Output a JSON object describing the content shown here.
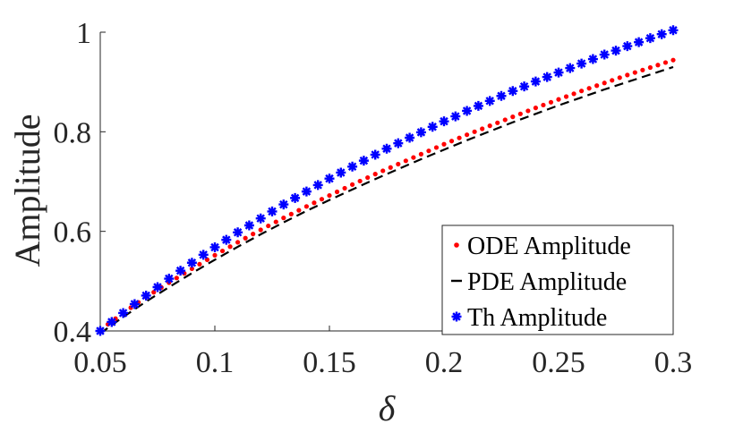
{
  "chart_data": {
    "type": "line",
    "title": "",
    "xlabel": "δ",
    "ylabel": "Amplitude",
    "xlim": [
      0.05,
      0.3
    ],
    "ylim": [
      0.4,
      1.0
    ],
    "xticks": [
      0.05,
      0.1,
      0.15,
      0.2,
      0.25,
      0.3
    ],
    "xtick_labels": [
      "0.05",
      "0.1",
      "0.15",
      "0.2",
      "0.25",
      "0.3"
    ],
    "yticks": [
      0.4,
      0.6,
      0.8,
      1.0
    ],
    "ytick_labels": [
      "0.4",
      "0.6",
      "0.8",
      "1"
    ],
    "grid": false,
    "legend_position": "bottom-right",
    "series": [
      {
        "name": "ODE Amplitude",
        "style": "dotted",
        "color": "#ff0000",
        "x": [
          0.05,
          0.06,
          0.07,
          0.08,
          0.09,
          0.1,
          0.11,
          0.12,
          0.13,
          0.14,
          0.15,
          0.16,
          0.17,
          0.18,
          0.19,
          0.2,
          0.21,
          0.22,
          0.23,
          0.24,
          0.25,
          0.26,
          0.27,
          0.28,
          0.29,
          0.3
        ],
        "y": [
          0.402,
          0.436,
          0.468,
          0.497,
          0.525,
          0.552,
          0.578,
          0.603,
          0.627,
          0.65,
          0.672,
          0.694,
          0.715,
          0.735,
          0.755,
          0.775,
          0.794,
          0.812,
          0.83,
          0.848,
          0.865,
          0.882,
          0.898,
          0.914,
          0.929,
          0.944
        ]
      },
      {
        "name": "PDE Amplitude",
        "style": "dashed",
        "color": "#000000",
        "x": [
          0.05,
          0.06,
          0.07,
          0.08,
          0.09,
          0.1,
          0.11,
          0.12,
          0.13,
          0.14,
          0.15,
          0.16,
          0.17,
          0.18,
          0.19,
          0.2,
          0.21,
          0.22,
          0.23,
          0.24,
          0.25,
          0.26,
          0.27,
          0.28,
          0.29,
          0.3
        ],
        "y": [
          0.395,
          0.428,
          0.459,
          0.488,
          0.516,
          0.543,
          0.569,
          0.594,
          0.618,
          0.641,
          0.663,
          0.684,
          0.705,
          0.725,
          0.745,
          0.764,
          0.783,
          0.801,
          0.819,
          0.836,
          0.853,
          0.869,
          0.885,
          0.9,
          0.915,
          0.93
        ]
      },
      {
        "name": "Th Amplitude",
        "style": "star-markers",
        "color": "#0000ff",
        "x": [
          0.05,
          0.055,
          0.06,
          0.065,
          0.07,
          0.075,
          0.08,
          0.085,
          0.09,
          0.095,
          0.1,
          0.105,
          0.11,
          0.115,
          0.12,
          0.125,
          0.13,
          0.135,
          0.14,
          0.145,
          0.15,
          0.155,
          0.16,
          0.165,
          0.17,
          0.175,
          0.18,
          0.185,
          0.19,
          0.195,
          0.2,
          0.205,
          0.21,
          0.215,
          0.22,
          0.225,
          0.23,
          0.235,
          0.24,
          0.245,
          0.25,
          0.255,
          0.26,
          0.265,
          0.27,
          0.275,
          0.28,
          0.285,
          0.29,
          0.295,
          0.3
        ],
        "y": [
          0.4,
          0.418,
          0.436,
          0.454,
          0.471,
          0.488,
          0.505,
          0.521,
          0.537,
          0.553,
          0.568,
          0.583,
          0.598,
          0.612,
          0.626,
          0.64,
          0.654,
          0.667,
          0.68,
          0.693,
          0.706,
          0.718,
          0.73,
          0.742,
          0.754,
          0.766,
          0.777,
          0.788,
          0.799,
          0.81,
          0.821,
          0.831,
          0.842,
          0.852,
          0.862,
          0.872,
          0.882,
          0.891,
          0.901,
          0.91,
          0.919,
          0.928,
          0.937,
          0.946,
          0.955,
          0.963,
          0.972,
          0.98,
          0.988,
          0.996,
          1.004
        ]
      }
    ]
  }
}
